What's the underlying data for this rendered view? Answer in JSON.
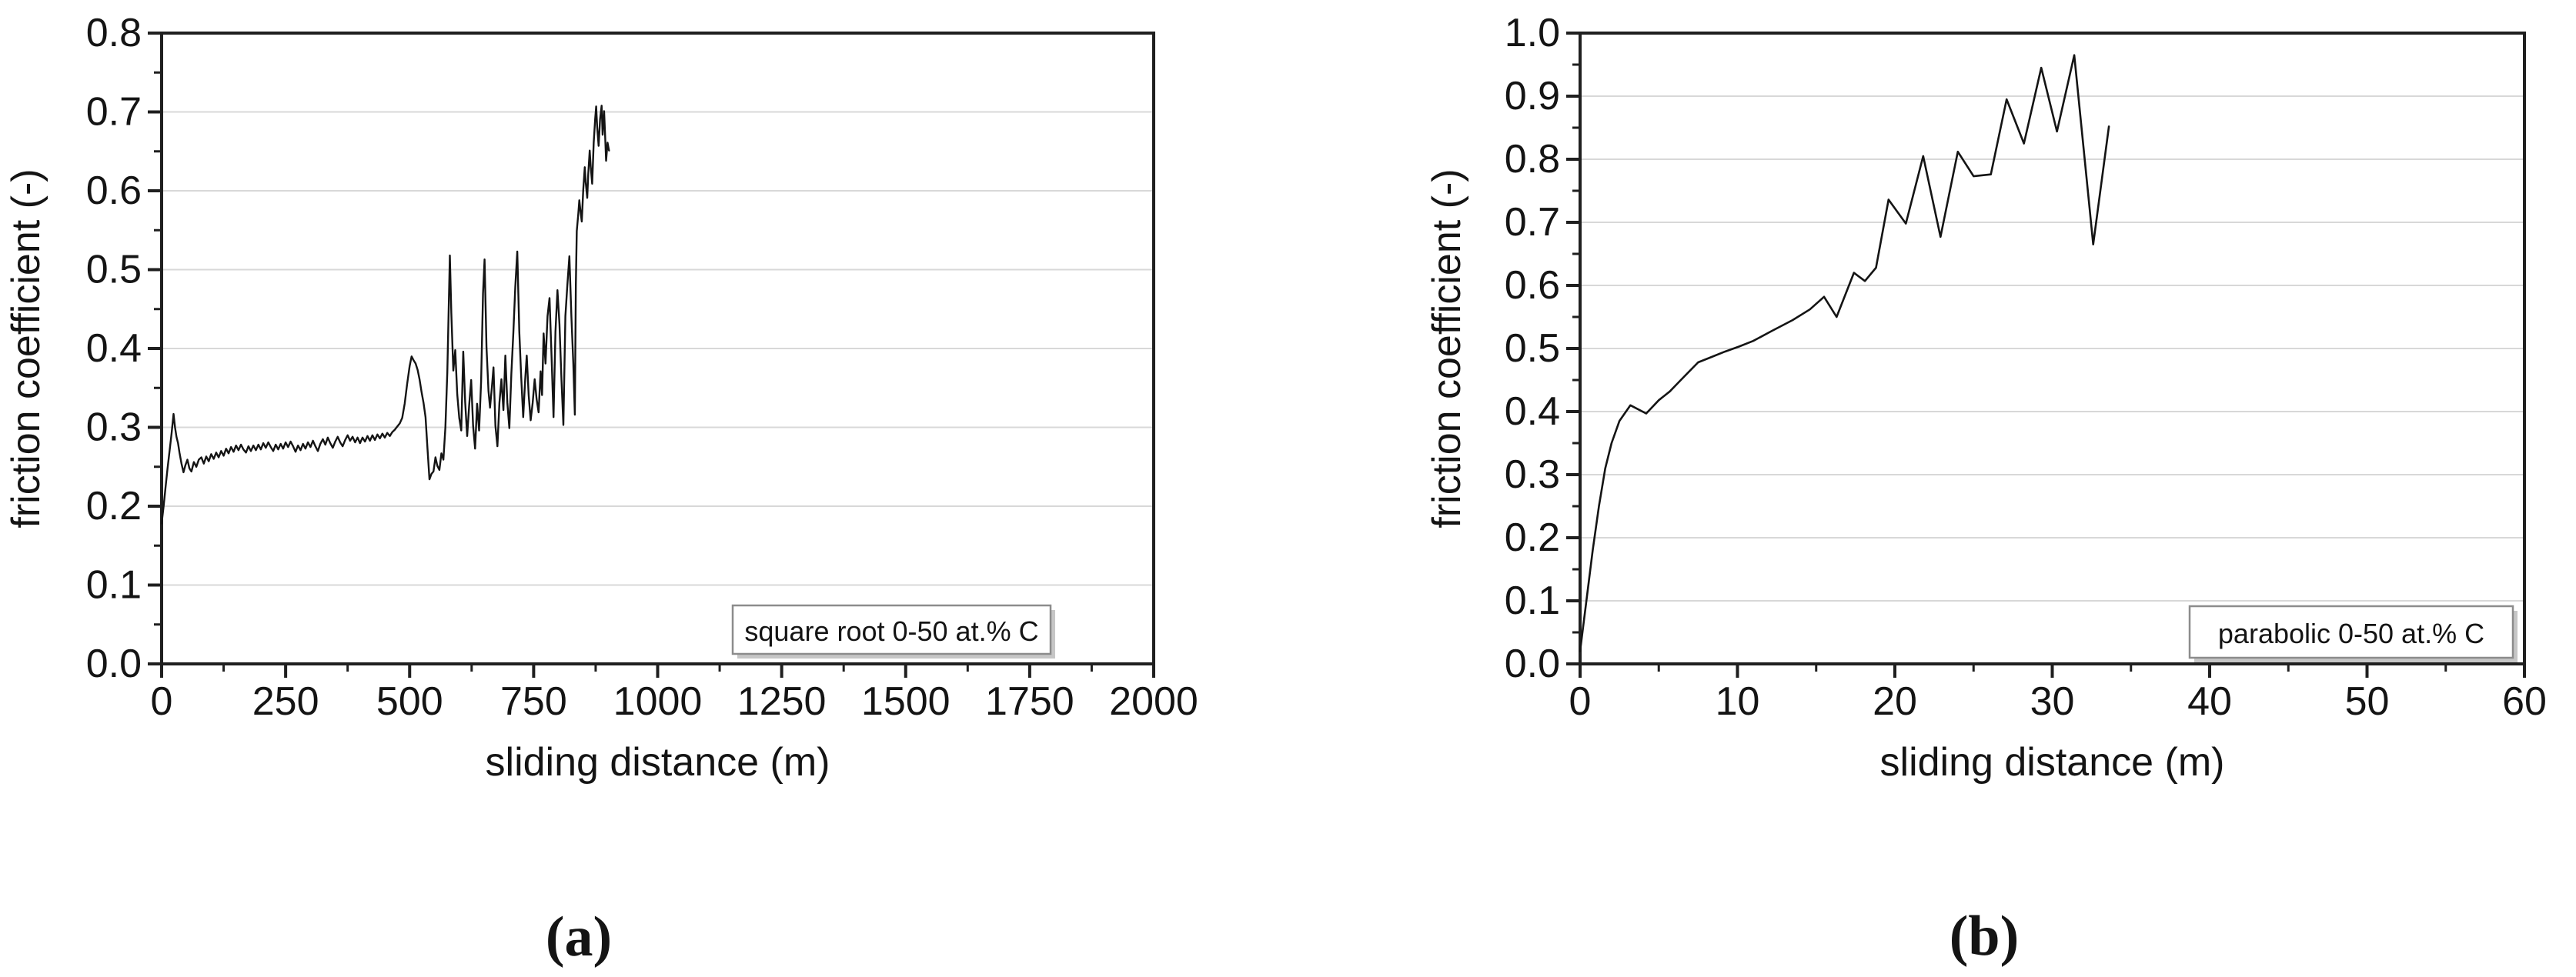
{
  "page": {
    "background": "#ffffff"
  },
  "figure": {
    "captions": [
      "(a)",
      "(b)"
    ]
  },
  "style": {
    "line_color": "#141414",
    "grid_color": "#d8d8d8",
    "frame_color": "#1f1f1f",
    "text_color": "#141414",
    "legend_border_color": "#8c8c8c",
    "legend_shadow_color": "#c6c6c6",
    "legend_fill": "#ffffff"
  },
  "chart_data": [
    {
      "id": "a",
      "type": "line",
      "title": "",
      "legend": "square root 0-50 at.% C",
      "legend_position": "inside-bottom-right",
      "xlabel": "sliding distance (m)",
      "ylabel": "friction coefficient (-)",
      "xlim": [
        0,
        2000
      ],
      "ylim": [
        0.0,
        0.8
      ],
      "grid": "horizontal-major",
      "xticks": [
        0,
        250,
        500,
        750,
        1000,
        1250,
        1500,
        1750,
        2000
      ],
      "xtick_labels": [
        "0",
        "250",
        "500",
        "750",
        "1000",
        "1250",
        "1500",
        "1750",
        "2000"
      ],
      "xminors": [
        125,
        375,
        625,
        875,
        1125,
        1375,
        1625,
        1875
      ],
      "yticks": [
        0.0,
        0.1,
        0.2,
        0.3,
        0.4,
        0.5,
        0.6,
        0.7,
        0.8
      ],
      "ytick_labels": [
        "0.0",
        "0.1",
        "0.2",
        "0.3",
        "0.4",
        "0.5",
        "0.6",
        "0.7",
        "0.8"
      ],
      "yminors": [
        0.05,
        0.15,
        0.25,
        0.35,
        0.45,
        0.55,
        0.65,
        0.75
      ],
      "points": [
        [
          0,
          0.178
        ],
        [
          4,
          0.2
        ],
        [
          8,
          0.225
        ],
        [
          12,
          0.248
        ],
        [
          16,
          0.27
        ],
        [
          20,
          0.292
        ],
        [
          24,
          0.317
        ],
        [
          27,
          0.3
        ],
        [
          30,
          0.288
        ],
        [
          33,
          0.28
        ],
        [
          36,
          0.268
        ],
        [
          40,
          0.254
        ],
        [
          44,
          0.243
        ],
        [
          48,
          0.252
        ],
        [
          52,
          0.259
        ],
        [
          56,
          0.248
        ],
        [
          60,
          0.244
        ],
        [
          65,
          0.256
        ],
        [
          70,
          0.25
        ],
        [
          75,
          0.259
        ],
        [
          80,
          0.262
        ],
        [
          85,
          0.254
        ],
        [
          90,
          0.263
        ],
        [
          95,
          0.257
        ],
        [
          100,
          0.266
        ],
        [
          105,
          0.26
        ],
        [
          110,
          0.268
        ],
        [
          115,
          0.262
        ],
        [
          120,
          0.27
        ],
        [
          125,
          0.264
        ],
        [
          130,
          0.273
        ],
        [
          135,
          0.267
        ],
        [
          140,
          0.275
        ],
        [
          145,
          0.269
        ],
        [
          150,
          0.277
        ],
        [
          155,
          0.271
        ],
        [
          160,
          0.278
        ],
        [
          165,
          0.272
        ],
        [
          170,
          0.268
        ],
        [
          175,
          0.276
        ],
        [
          180,
          0.27
        ],
        [
          185,
          0.277
        ],
        [
          190,
          0.271
        ],
        [
          195,
          0.278
        ],
        [
          200,
          0.272
        ],
        [
          205,
          0.28
        ],
        [
          210,
          0.274
        ],
        [
          215,
          0.281
        ],
        [
          220,
          0.275
        ],
        [
          225,
          0.27
        ],
        [
          230,
          0.278
        ],
        [
          235,
          0.272
        ],
        [
          240,
          0.279
        ],
        [
          245,
          0.273
        ],
        [
          250,
          0.281
        ],
        [
          255,
          0.275
        ],
        [
          260,
          0.282
        ],
        [
          265,
          0.276
        ],
        [
          270,
          0.269
        ],
        [
          275,
          0.277
        ],
        [
          280,
          0.271
        ],
        [
          285,
          0.279
        ],
        [
          290,
          0.273
        ],
        [
          295,
          0.281
        ],
        [
          300,
          0.275
        ],
        [
          305,
          0.283
        ],
        [
          310,
          0.276
        ],
        [
          315,
          0.27
        ],
        [
          320,
          0.279
        ],
        [
          325,
          0.285
        ],
        [
          330,
          0.278
        ],
        [
          335,
          0.287
        ],
        [
          340,
          0.28
        ],
        [
          345,
          0.274
        ],
        [
          350,
          0.282
        ],
        [
          355,
          0.288
        ],
        [
          360,
          0.281
        ],
        [
          365,
          0.276
        ],
        [
          370,
          0.284
        ],
        [
          375,
          0.29
        ],
        [
          380,
          0.283
        ],
        [
          385,
          0.288
        ],
        [
          390,
          0.281
        ],
        [
          395,
          0.287
        ],
        [
          400,
          0.28
        ],
        [
          405,
          0.287
        ],
        [
          410,
          0.282
        ],
        [
          415,
          0.289
        ],
        [
          420,
          0.283
        ],
        [
          425,
          0.29
        ],
        [
          430,
          0.284
        ],
        [
          435,
          0.291
        ],
        [
          440,
          0.286
        ],
        [
          445,
          0.292
        ],
        [
          450,
          0.287
        ],
        [
          455,
          0.293
        ],
        [
          460,
          0.289
        ],
        [
          465,
          0.294
        ],
        [
          470,
          0.297
        ],
        [
          475,
          0.301
        ],
        [
          480,
          0.305
        ],
        [
          485,
          0.312
        ],
        [
          490,
          0.33
        ],
        [
          495,
          0.355
        ],
        [
          500,
          0.378
        ],
        [
          504,
          0.39
        ],
        [
          508,
          0.385
        ],
        [
          512,
          0.381
        ],
        [
          516,
          0.373
        ],
        [
          520,
          0.361
        ],
        [
          524,
          0.345
        ],
        [
          528,
          0.331
        ],
        [
          532,
          0.313
        ],
        [
          536,
          0.272
        ],
        [
          540,
          0.234
        ],
        [
          544,
          0.241
        ],
        [
          548,
          0.244
        ],
        [
          552,
          0.262
        ],
        [
          556,
          0.251
        ],
        [
          560,
          0.246
        ],
        [
          564,
          0.267
        ],
        [
          568,
          0.259
        ],
        [
          572,
          0.3
        ],
        [
          576,
          0.37
        ],
        [
          581,
          0.518
        ],
        [
          584,
          0.445
        ],
        [
          588,
          0.372
        ],
        [
          592,
          0.398
        ],
        [
          596,
          0.342
        ],
        [
          600,
          0.312
        ],
        [
          604,
          0.296
        ],
        [
          608,
          0.396
        ],
        [
          612,
          0.332
        ],
        [
          616,
          0.289
        ],
        [
          620,
          0.328
        ],
        [
          624,
          0.36
        ],
        [
          628,
          0.302
        ],
        [
          632,
          0.273
        ],
        [
          636,
          0.33
        ],
        [
          640,
          0.296
        ],
        [
          644,
          0.358
        ],
        [
          648,
          0.47
        ],
        [
          651,
          0.513
        ],
        [
          655,
          0.402
        ],
        [
          659,
          0.346
        ],
        [
          662,
          0.325
        ],
        [
          666,
          0.352
        ],
        [
          669,
          0.376
        ],
        [
          673,
          0.302
        ],
        [
          677,
          0.276
        ],
        [
          681,
          0.331
        ],
        [
          685,
          0.361
        ],
        [
          689,
          0.322
        ],
        [
          693,
          0.391
        ],
        [
          697,
          0.331
        ],
        [
          701,
          0.299
        ],
        [
          705,
          0.368
        ],
        [
          709,
          0.42
        ],
        [
          713,
          0.478
        ],
        [
          717,
          0.523
        ],
        [
          721,
          0.422
        ],
        [
          725,
          0.362
        ],
        [
          729,
          0.313
        ],
        [
          733,
          0.361
        ],
        [
          736,
          0.391
        ],
        [
          740,
          0.341
        ],
        [
          744,
          0.309
        ],
        [
          748,
          0.331
        ],
        [
          752,
          0.361
        ],
        [
          756,
          0.336
        ],
        [
          760,
          0.319
        ],
        [
          764,
          0.371
        ],
        [
          767,
          0.341
        ],
        [
          770,
          0.419
        ],
        [
          774,
          0.381
        ],
        [
          778,
          0.441
        ],
        [
          782,
          0.464
        ],
        [
          786,
          0.391
        ],
        [
          790,
          0.313
        ],
        [
          794,
          0.421
        ],
        [
          798,
          0.474
        ],
        [
          802,
          0.431
        ],
        [
          806,
          0.361
        ],
        [
          810,
          0.303
        ],
        [
          814,
          0.441
        ],
        [
          818,
          0.481
        ],
        [
          822,
          0.517
        ],
        [
          826,
          0.441
        ],
        [
          830,
          0.381
        ],
        [
          833,
          0.316
        ],
        [
          835,
          0.481
        ],
        [
          837,
          0.549
        ],
        [
          840,
          0.571
        ],
        [
          842,
          0.588
        ],
        [
          845,
          0.571
        ],
        [
          847,
          0.561
        ],
        [
          850,
          0.601
        ],
        [
          853,
          0.63
        ],
        [
          855,
          0.611
        ],
        [
          858,
          0.591
        ],
        [
          860,
          0.621
        ],
        [
          863,
          0.651
        ],
        [
          865,
          0.631
        ],
        [
          868,
          0.609
        ],
        [
          871,
          0.661
        ],
        [
          874,
          0.691
        ],
        [
          876,
          0.707
        ],
        [
          878,
          0.681
        ],
        [
          881,
          0.657
        ],
        [
          884,
          0.691
        ],
        [
          887,
          0.708
        ],
        [
          889,
          0.671
        ],
        [
          892,
          0.701
        ],
        [
          894,
          0.671
        ],
        [
          896,
          0.638
        ],
        [
          899,
          0.661
        ],
        [
          902,
          0.651
        ]
      ]
    },
    {
      "id": "b",
      "type": "line",
      "title": "",
      "legend": "parabolic 0-50 at.% C",
      "legend_position": "inside-bottom-right",
      "xlabel": "sliding distance (m)",
      "ylabel": "friction coefficient (-)",
      "xlim": [
        0,
        60
      ],
      "ylim": [
        0.0,
        1.0
      ],
      "grid": "horizontal-major",
      "xticks": [
        0,
        10,
        20,
        30,
        40,
        50,
        60
      ],
      "xtick_labels": [
        "0",
        "10",
        "20",
        "30",
        "40",
        "50",
        "60"
      ],
      "xminors": [
        5,
        15,
        25,
        35,
        45,
        55
      ],
      "yticks": [
        0.0,
        0.1,
        0.2,
        0.3,
        0.4,
        0.5,
        0.6,
        0.7,
        0.8,
        0.9,
        1.0
      ],
      "ytick_labels": [
        "0.0",
        "0.1",
        "0.2",
        "0.3",
        "0.4",
        "0.5",
        "0.6",
        "0.7",
        "0.8",
        "0.9",
        "1.0"
      ],
      "yminors": [
        0.05,
        0.15,
        0.25,
        0.35,
        0.45,
        0.55,
        0.65,
        0.75,
        0.85,
        0.95
      ],
      "points": [
        [
          0,
          0.02
        ],
        [
          0.4,
          0.1
        ],
        [
          0.8,
          0.18
        ],
        [
          1.2,
          0.25
        ],
        [
          1.6,
          0.31
        ],
        [
          2.0,
          0.35
        ],
        [
          2.5,
          0.385
        ],
        [
          3.2,
          0.41
        ],
        [
          4.2,
          0.397
        ],
        [
          5.0,
          0.418
        ],
        [
          5.7,
          0.432
        ],
        [
          6.4,
          0.45
        ],
        [
          7.5,
          0.478
        ],
        [
          8.3,
          0.486
        ],
        [
          9.2,
          0.495
        ],
        [
          10.1,
          0.503
        ],
        [
          11.0,
          0.512
        ],
        [
          12.2,
          0.528
        ],
        [
          13.5,
          0.545
        ],
        [
          14.6,
          0.562
        ],
        [
          15.5,
          0.582
        ],
        [
          16.3,
          0.55
        ],
        [
          17.4,
          0.62
        ],
        [
          18.1,
          0.607
        ],
        [
          18.8,
          0.628
        ],
        [
          19.6,
          0.736
        ],
        [
          20.7,
          0.698
        ],
        [
          21.8,
          0.805
        ],
        [
          22.9,
          0.677
        ],
        [
          24.0,
          0.812
        ],
        [
          25.0,
          0.773
        ],
        [
          26.1,
          0.776
        ],
        [
          27.1,
          0.895
        ],
        [
          28.2,
          0.825
        ],
        [
          29.3,
          0.945
        ],
        [
          30.3,
          0.844
        ],
        [
          31.4,
          0.965
        ],
        [
          32.6,
          0.665
        ],
        [
          33.6,
          0.852
        ]
      ]
    }
  ]
}
